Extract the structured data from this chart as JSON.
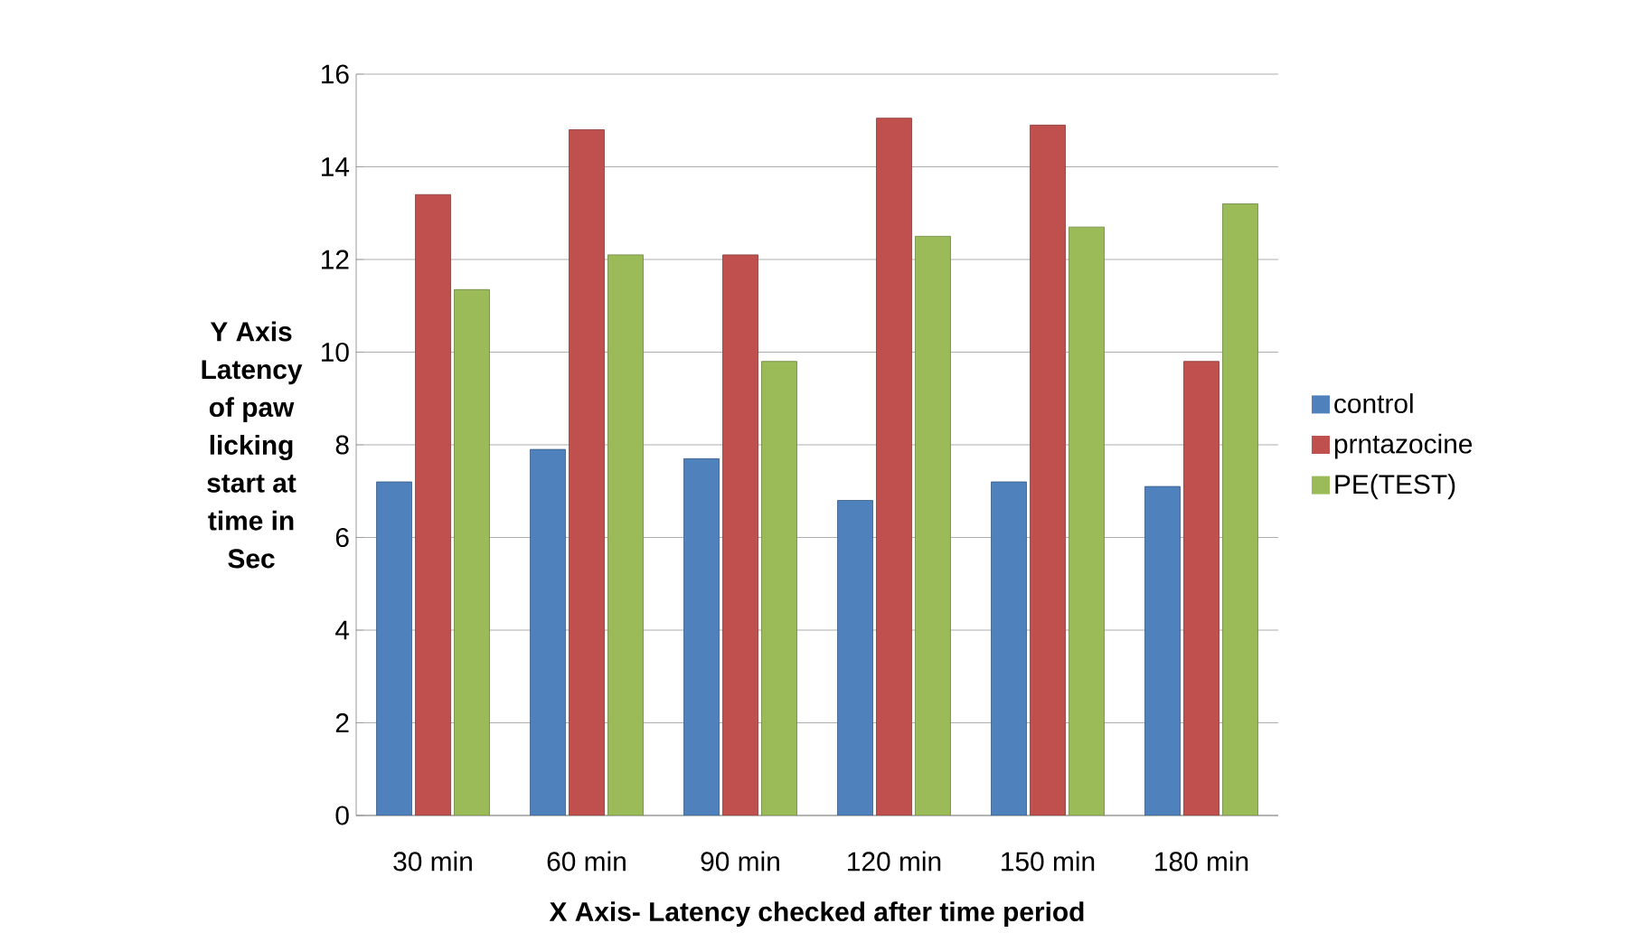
{
  "chart_data": {
    "type": "bar",
    "xlabel": "X Axis- Latency checked after time period",
    "ylabel": "Y  Axis Latency of paw licking start at time in Sec",
    "categories": [
      "30 min",
      "60 min",
      "90 min",
      "120 min",
      "150 min",
      "180 min"
    ],
    "series": [
      {
        "name": "control",
        "color": "#4f81bd",
        "values": [
          7.2,
          7.9,
          7.7,
          6.8,
          7.2,
          7.1
        ]
      },
      {
        "name": "prntazocine",
        "color": "#c0504d",
        "values": [
          13.4,
          14.8,
          12.1,
          15.05,
          14.9,
          9.8
        ]
      },
      {
        "name": "PE(TEST)",
        "color": "#9bbb59",
        "values": [
          11.35,
          12.1,
          9.8,
          12.5,
          12.7,
          13.2
        ]
      }
    ],
    "ylim": [
      0,
      16
    ],
    "yticks": [
      0,
      2,
      4,
      6,
      8,
      10,
      12,
      14,
      16
    ],
    "grid": "y",
    "legend": "right"
  }
}
